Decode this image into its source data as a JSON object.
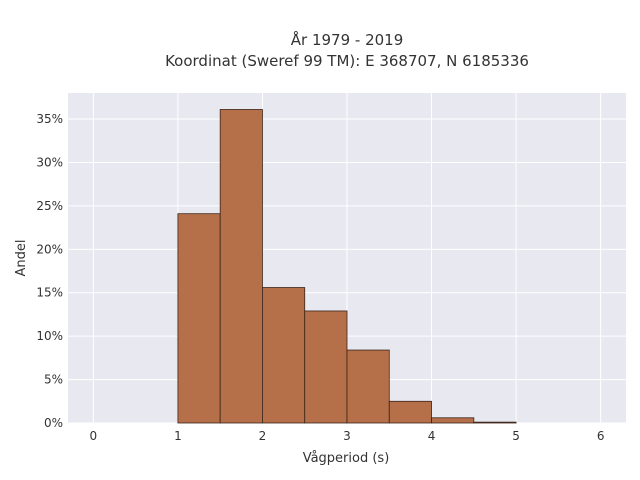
{
  "chart_data": {
    "type": "bar",
    "title": "År 1979 - 2019",
    "subtitle": "Koordinat (Sweref 99 TM): E 368707, N 6185336",
    "xlabel": "Vågperiod (s)",
    "ylabel": "Andel",
    "xlim": [
      -0.3,
      6.3
    ],
    "ylim": [
      0,
      0.38
    ],
    "x_ticks": [
      0,
      1,
      2,
      3,
      4,
      5,
      6
    ],
    "y_ticks": [
      0,
      0.05,
      0.1,
      0.15,
      0.2,
      0.25,
      0.3,
      0.35
    ],
    "y_tick_labels": [
      "0%",
      "5%",
      "10%",
      "15%",
      "20%",
      "25%",
      "30%",
      "35%"
    ],
    "bin_edges": [
      1.0,
      1.5,
      2.0,
      2.5,
      3.0,
      3.5,
      4.0,
      4.5,
      5.0
    ],
    "values": [
      0.241,
      0.361,
      0.156,
      0.129,
      0.084,
      0.025,
      0.006,
      0.001
    ],
    "bar_color": "#b5704a",
    "plot_background": "#e8e8f0",
    "grid": true,
    "legend": "none"
  }
}
